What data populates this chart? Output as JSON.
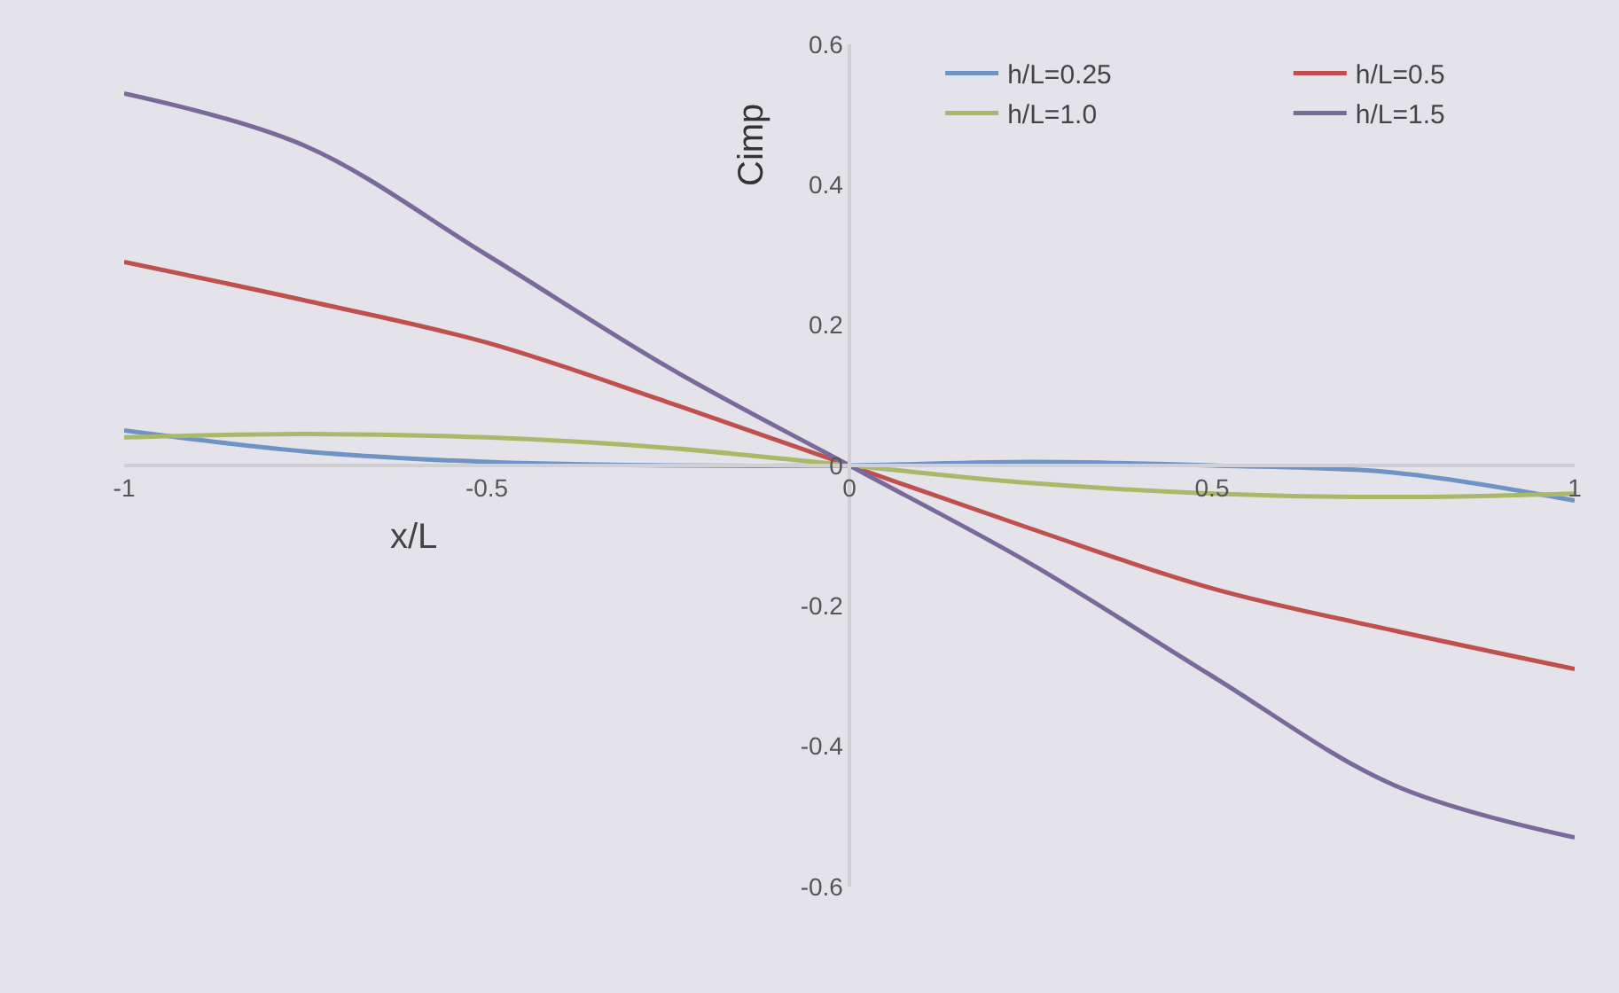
{
  "chart_data": {
    "type": "line",
    "xlabel": "x/L",
    "ylabel": "Cimp",
    "x": [
      -1,
      -0.75,
      -0.5,
      -0.25,
      0,
      0.25,
      0.5,
      0.75,
      1
    ],
    "series": [
      {
        "name": "h/L=0.25",
        "color": "#6f93c4",
        "values": [
          0.05,
          0.02,
          0.005,
          0.0,
          0,
          0.005,
          0.0,
          -0.01,
          -0.05
        ]
      },
      {
        "name": "h/L=0.5",
        "color": "#c0504d",
        "values": [
          0.29,
          0.235,
          0.175,
          0.09,
          0,
          -0.09,
          -0.175,
          -0.235,
          -0.29
        ]
      },
      {
        "name": "h/L=1.0",
        "color": "#a8b96a",
        "values": [
          0.04,
          0.045,
          0.04,
          0.025,
          0,
          -0.025,
          -0.04,
          -0.045,
          -0.04
        ]
      },
      {
        "name": "h/L=1.5",
        "color": "#7a6a9c",
        "values": [
          0.53,
          0.455,
          0.3,
          0.14,
          0,
          -0.14,
          -0.3,
          -0.455,
          -0.53
        ]
      }
    ],
    "xlim": [
      -1,
      1
    ],
    "xticks": [
      -1,
      -0.5,
      0,
      0.5,
      1
    ],
    "ylim": [
      -0.6,
      0.6
    ],
    "yticks": [
      -0.6,
      -0.4,
      -0.2,
      0,
      0.2,
      0.4,
      0.6
    ],
    "grid": false,
    "legend": "top right",
    "marker": "none",
    "line_style": "solid"
  }
}
